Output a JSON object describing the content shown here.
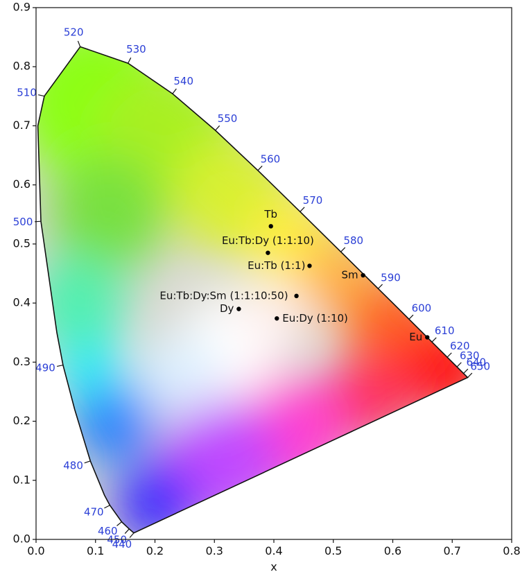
{
  "chart_data": {
    "type": "scatter",
    "title": "",
    "xlabel": "x",
    "ylabel": "",
    "xlim": [
      0,
      0.8
    ],
    "ylim": [
      0,
      0.9
    ],
    "grid": false,
    "x_ticks": [
      "0.0",
      "0.1",
      "0.2",
      "0.3",
      "0.4",
      "0.5",
      "0.6",
      "0.7",
      "0.8"
    ],
    "y_ticks": [
      "0.0",
      "0.1",
      "0.2",
      "0.3",
      "0.4",
      "0.5",
      "0.6",
      "0.7",
      "0.8",
      "0.9"
    ],
    "locus": [
      {
        "nm": 440,
        "x": 0.1644,
        "y": 0.0109
      },
      {
        "nm": 450,
        "x": 0.1566,
        "y": 0.0177
      },
      {
        "nm": 460,
        "x": 0.144,
        "y": 0.0297
      },
      {
        "nm": 470,
        "x": 0.1241,
        "y": 0.0578
      },
      {
        "nm": 480,
        "x": 0.0913,
        "y": 0.1327
      },
      {
        "nm": 490,
        "x": 0.0454,
        "y": 0.295
      },
      {
        "nm": 500,
        "x": 0.0082,
        "y": 0.5384
      },
      {
        "nm": 510,
        "x": 0.0139,
        "y": 0.7502
      },
      {
        "nm": 520,
        "x": 0.0743,
        "y": 0.8338
      },
      {
        "nm": 530,
        "x": 0.1547,
        "y": 0.8059
      },
      {
        "nm": 540,
        "x": 0.2296,
        "y": 0.7543
      },
      {
        "nm": 550,
        "x": 0.3016,
        "y": 0.6923
      },
      {
        "nm": 560,
        "x": 0.3731,
        "y": 0.6245
      },
      {
        "nm": 570,
        "x": 0.4441,
        "y": 0.5547
      },
      {
        "nm": 580,
        "x": 0.5125,
        "y": 0.4866
      },
      {
        "nm": 590,
        "x": 0.5752,
        "y": 0.4242
      },
      {
        "nm": 600,
        "x": 0.627,
        "y": 0.3725
      },
      {
        "nm": 610,
        "x": 0.6658,
        "y": 0.334
      },
      {
        "nm": 620,
        "x": 0.6915,
        "y": 0.3083
      },
      {
        "nm": 630,
        "x": 0.7079,
        "y": 0.292
      },
      {
        "nm": 640,
        "x": 0.719,
        "y": 0.2809
      },
      {
        "nm": 650,
        "x": 0.726,
        "y": 0.274
      }
    ],
    "wavelength_labels": [
      "440",
      "450",
      "460",
      "470",
      "480",
      "490",
      "500",
      "510",
      "520",
      "530",
      "540",
      "550",
      "560",
      "570",
      "580",
      "590",
      "600",
      "610",
      "620",
      "630",
      "640",
      "650"
    ],
    "points": [
      {
        "label": "Tb",
        "x": 0.395,
        "y": 0.53
      },
      {
        "label": "Eu:Tb:Dy (1:1:10)",
        "x": 0.39,
        "y": 0.485
      },
      {
        "label": "Eu:Tb (1:1)",
        "x": 0.46,
        "y": 0.463
      },
      {
        "label": "Sm",
        "x": 0.55,
        "y": 0.447
      },
      {
        "label": "Eu:Tb:Dy:Sm (1:1:10:50)",
        "x": 0.438,
        "y": 0.412
      },
      {
        "label": "Dy",
        "x": 0.341,
        "y": 0.39
      },
      {
        "label": "Eu:Dy (1:10)",
        "x": 0.405,
        "y": 0.374
      },
      {
        "label": "Eu",
        "x": 0.658,
        "y": 0.342
      }
    ],
    "colors": {
      "axis": "#111111",
      "wavelength_label": "#2b3fd6",
      "point": "#000000"
    }
  }
}
